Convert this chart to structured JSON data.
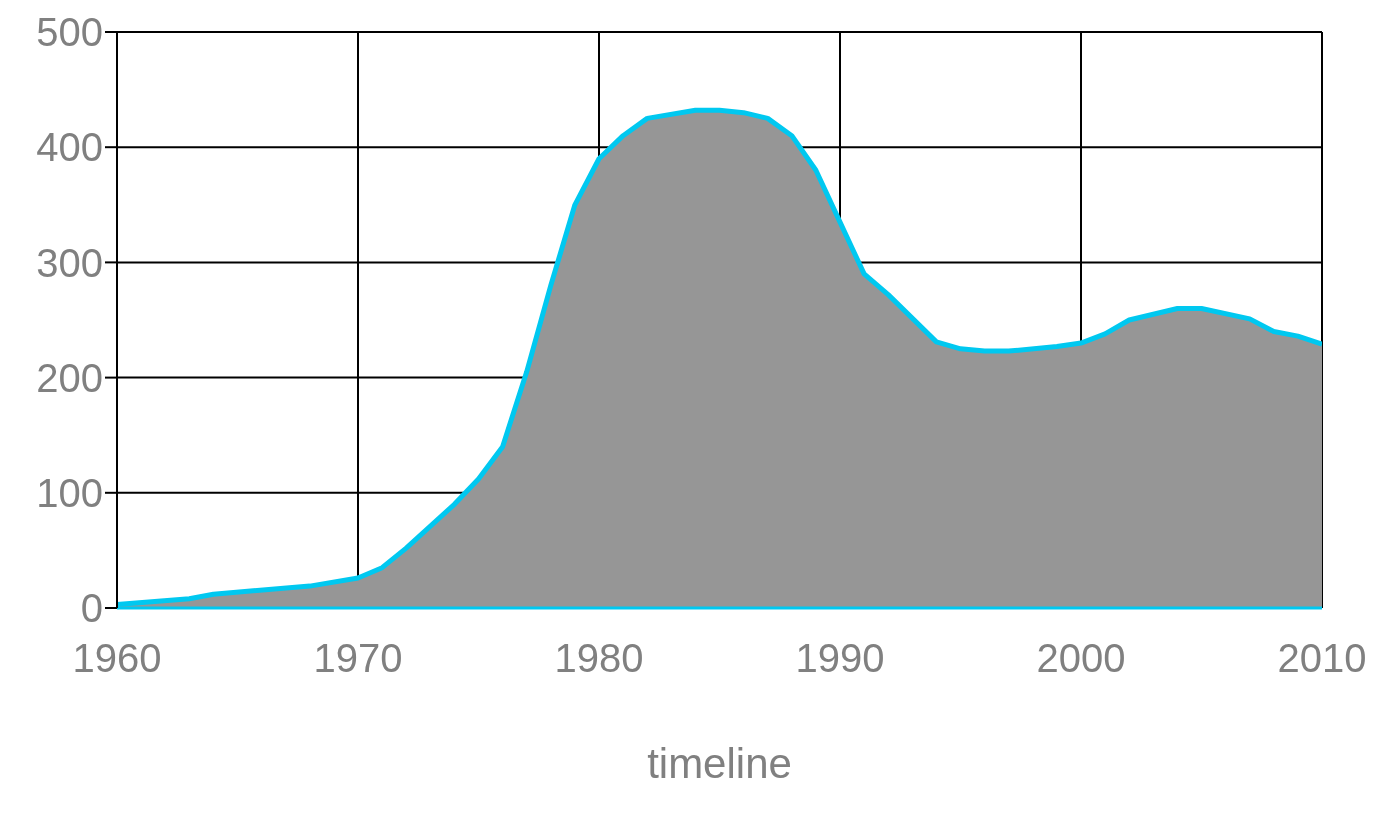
{
  "chart_data": {
    "type": "area",
    "xlabel": "timeline",
    "x": [
      1960,
      1963,
      1964,
      1968,
      1970,
      1971,
      1972,
      1974,
      1975,
      1976,
      1977,
      1978,
      1979,
      1980,
      1981,
      1982,
      1984,
      1985,
      1986,
      1987,
      1988,
      1989,
      1990,
      1991,
      1992,
      1994,
      1995,
      1996,
      1997,
      1999,
      2000,
      2001,
      2002,
      2004,
      2005,
      2007,
      2008,
      2009,
      2010
    ],
    "series": [
      {
        "color": "#969696",
        "values": [
          3,
          8,
          12,
          19,
          26,
          35,
          52,
          90,
          112,
          140,
          205,
          280,
          350,
          390,
          410,
          425,
          432,
          432,
          430,
          425,
          410,
          380,
          335,
          290,
          272,
          231,
          225,
          223,
          223,
          227,
          230,
          238,
          250,
          260,
          260,
          251,
          240,
          236,
          229
        ]
      }
    ],
    "xlim": [
      1960,
      2010
    ],
    "ylim": [
      0,
      500
    ],
    "xticks": [
      1960,
      1970,
      1980,
      1990,
      2000,
      2010
    ],
    "yticks": [
      0,
      100,
      200,
      300,
      400,
      500
    ],
    "grid": true
  }
}
